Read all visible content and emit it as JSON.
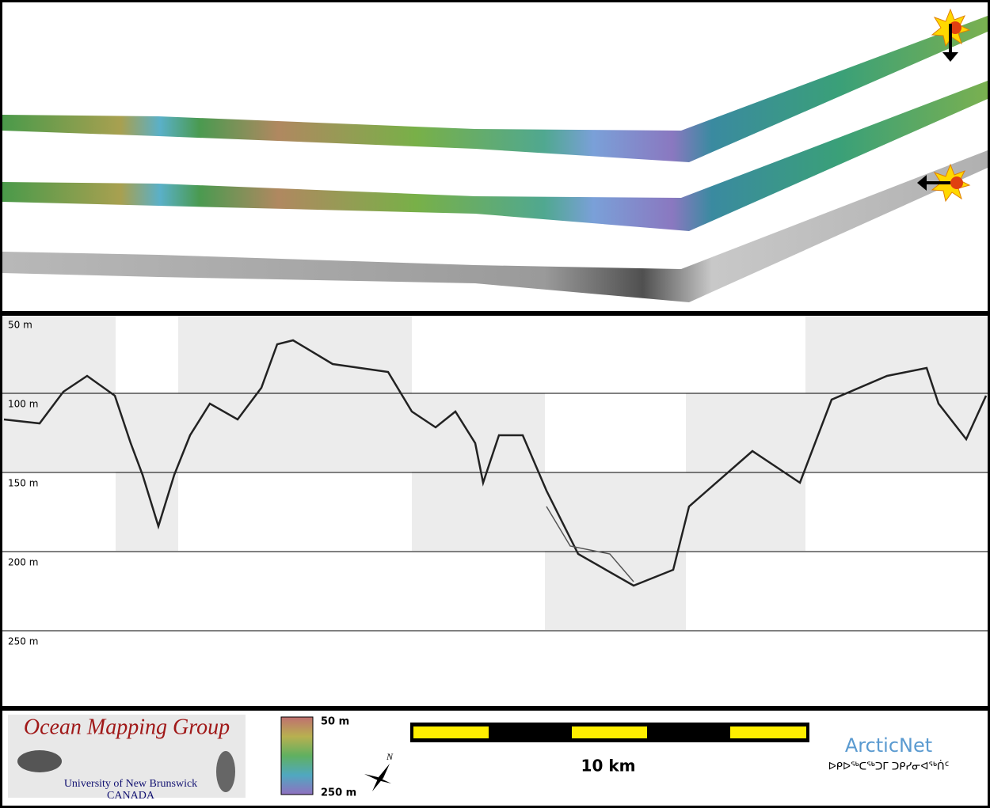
{
  "profile": {
    "depth_labels": [
      "50 m",
      "100 m",
      "150 m",
      "200 m",
      "250 m"
    ]
  },
  "logo": {
    "title": "Ocean Mapping Group",
    "university": "University of New Brunswick",
    "country": "CANADA"
  },
  "colorbar": {
    "top_label": "50 m",
    "bottom_label": "250 m"
  },
  "scale_bar": {
    "label": "10 km"
  },
  "compass": {
    "label": "N"
  },
  "partner": {
    "name": "ArcticNet",
    "syllabics": "ᐅᑭᐅᖅᑕᖅᑐᒥ ᑐᑭᓯᓂᐊᖅᑏᑦ"
  }
}
